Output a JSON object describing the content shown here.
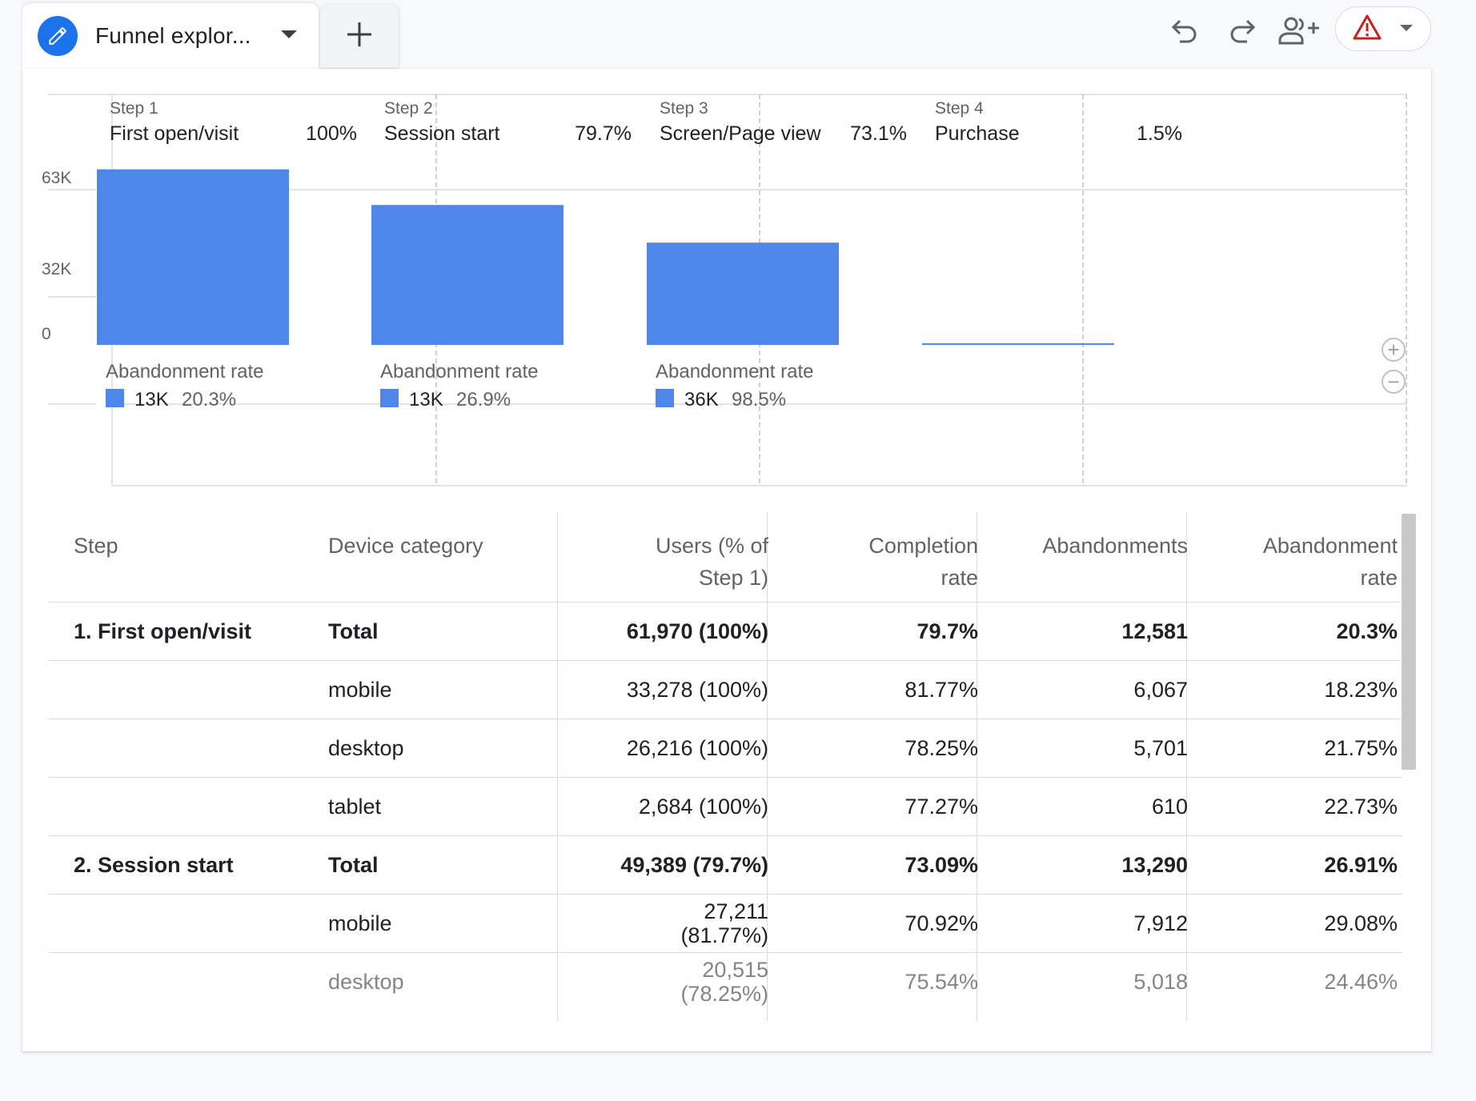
{
  "tab": {
    "title": "Funnel explor...",
    "add_label": "+"
  },
  "toolbar": {
    "undo_icon": "undo-icon",
    "redo_icon": "redo-icon",
    "share_icon": "share-users-icon",
    "warning_icon": "warning-triangle-icon",
    "warning_color": "#c5221f"
  },
  "chart_data": {
    "type": "bar",
    "y_ticks": [
      "63K",
      "32K",
      "0"
    ],
    "ylim": [
      0,
      63000
    ],
    "bar_color": "#4e86ea",
    "steps": [
      {
        "label": "Step 1",
        "name": "First open/visit",
        "pct": "100%",
        "value": 61970,
        "abandon_label": "Abandonment rate",
        "abandon_count": "13K",
        "abandon_rate": "20.3%"
      },
      {
        "label": "Step 2",
        "name": "Session start",
        "pct": "79.7%",
        "value": 49389,
        "abandon_label": "Abandonment rate",
        "abandon_count": "13K",
        "abandon_rate": "26.9%"
      },
      {
        "label": "Step 3",
        "name": "Screen/Page view",
        "pct": "73.1%",
        "value": 36100,
        "abandon_label": "Abandonment rate",
        "abandon_count": "36K",
        "abandon_rate": "98.5%"
      },
      {
        "label": "Step 4",
        "name": "Purchase",
        "pct": "1.5%",
        "value": 540,
        "abandon_label": "",
        "abandon_count": "",
        "abandon_rate": ""
      }
    ]
  },
  "table": {
    "headers": {
      "step": "Step",
      "device": "Device category",
      "users_1": "Users (% of",
      "users_2": "Step 1)",
      "completion_1": "Completion",
      "completion_2": "rate",
      "abandonments": "Abandonments",
      "abandon_rate_1": "Abandonment",
      "abandon_rate_2": "rate"
    },
    "rows": [
      {
        "step": "1. First open/visit",
        "device": "Total",
        "users": "61,970 (100%)",
        "completion": "79.7%",
        "abandonments": "12,581",
        "abandon_rate": "20.3%"
      },
      {
        "step": "",
        "device": "mobile",
        "users": "33,278 (100%)",
        "completion": "81.77%",
        "abandonments": "6,067",
        "abandon_rate": "18.23%"
      },
      {
        "step": "",
        "device": "desktop",
        "users": "26,216 (100%)",
        "completion": "78.25%",
        "abandonments": "5,701",
        "abandon_rate": "21.75%"
      },
      {
        "step": "",
        "device": "tablet",
        "users": "2,684 (100%)",
        "completion": "77.27%",
        "abandonments": "610",
        "abandon_rate": "22.73%"
      },
      {
        "step": "2. Session start",
        "device": "Total",
        "users": "49,389 (79.7%)",
        "completion": "73.09%",
        "abandonments": "13,290",
        "abandon_rate": "26.91%"
      },
      {
        "step": "",
        "device": "mobile",
        "users_line1": "27,211",
        "users_line2": "(81.77%)",
        "completion": "70.92%",
        "abandonments": "7,912",
        "abandon_rate": "29.08%"
      },
      {
        "step": "",
        "device": "desktop",
        "users_line1": "20,515",
        "users_line2": "(78.25%)",
        "completion": "75.54%",
        "abandonments": "5,018",
        "abandon_rate": "24.46%"
      }
    ]
  }
}
